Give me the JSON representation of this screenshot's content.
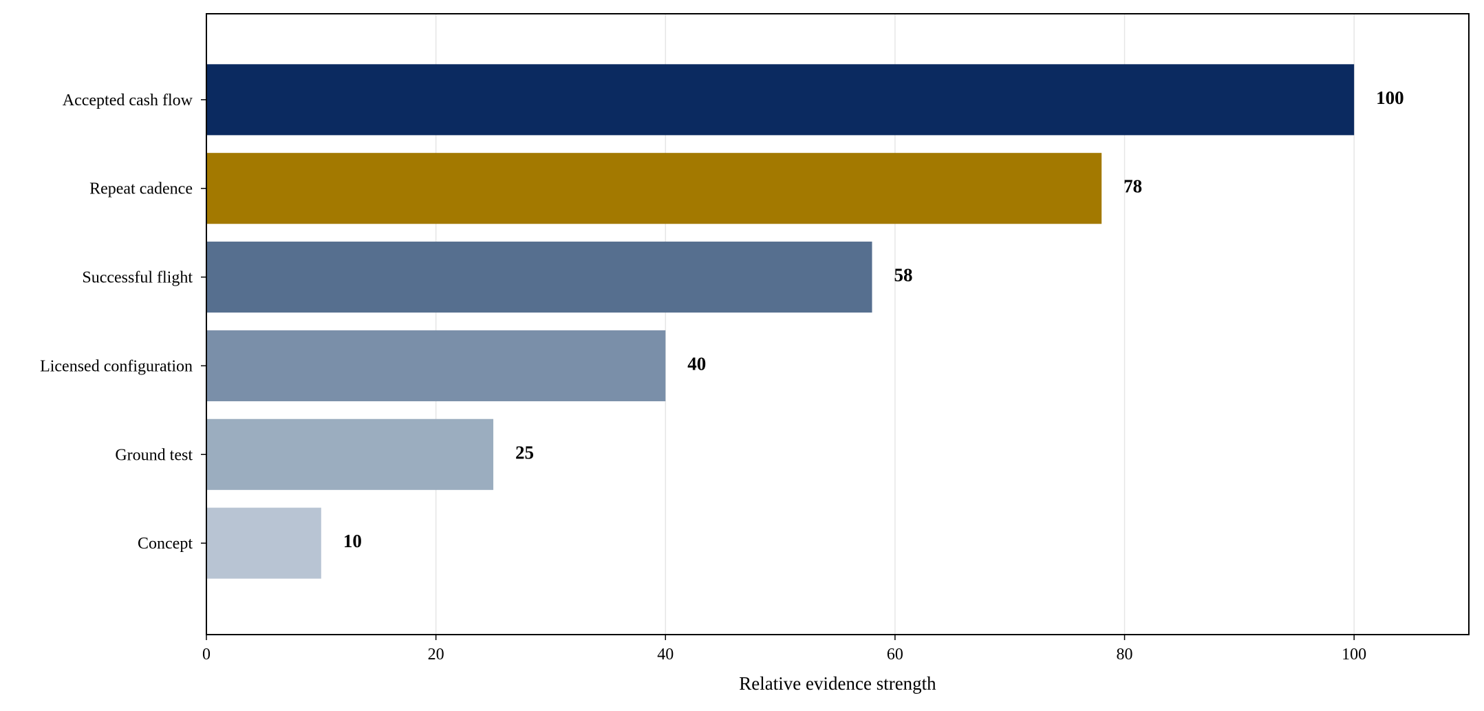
{
  "chart_data": {
    "type": "bar",
    "orientation": "horizontal",
    "title": "",
    "xlabel": "Relative evidence strength",
    "ylabel": "",
    "categories": [
      "Accepted cash flow",
      "Repeat cadence",
      "Successful flight",
      "Licensed configuration",
      "Ground test",
      "Concept"
    ],
    "values": [
      100,
      78,
      58,
      40,
      25,
      10
    ],
    "data_labels": [
      "100",
      "78",
      "58",
      "40",
      "25",
      "10"
    ],
    "colors": [
      "#0b2a60",
      "#a37900",
      "#566f8f",
      "#7a8fa9",
      "#9badbf",
      "#b8c4d3"
    ],
    "xlim": [
      0,
      110
    ],
    "xticks": [
      0,
      20,
      40,
      60,
      80,
      100
    ],
    "xtick_labels": [
      "0",
      "20",
      "40",
      "60",
      "80",
      "100"
    ],
    "grid": "vertical",
    "legend": "none"
  }
}
